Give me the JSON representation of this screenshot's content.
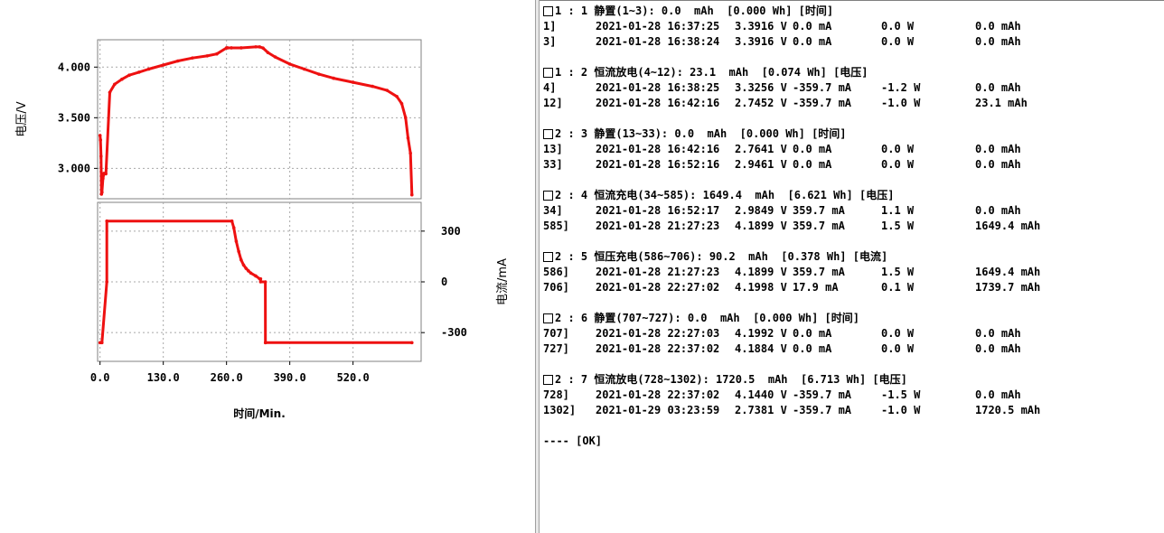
{
  "chart_data": [
    {
      "type": "line",
      "ylabel": "电压/V",
      "ylim": [
        2.7,
        4.27
      ],
      "yticks": [
        "4.000",
        "3.500",
        "3.000"
      ],
      "xlim": [
        -5,
        660
      ],
      "series": [
        {
          "color": "#ee1111",
          "x": [
            0,
            1,
            2,
            3,
            4,
            6,
            8,
            12,
            20,
            30,
            45,
            60,
            80,
            100,
            130,
            160,
            190,
            220,
            240,
            260,
            262,
            270,
            290,
            320,
            328,
            335,
            345,
            360,
            390,
            420,
            450,
            480,
            520,
            560,
            590,
            610,
            620,
            628,
            633,
            638,
            641
          ],
          "y": [
            3.3256,
            3.28,
            3.12,
            2.7452,
            2.7641,
            2.9,
            2.95,
            2.9461,
            3.75,
            3.83,
            3.88,
            3.92,
            3.95,
            3.98,
            4.02,
            4.06,
            4.09,
            4.11,
            4.13,
            4.1899,
            4.19,
            4.19,
            4.19,
            4.1998,
            4.1992,
            4.1884,
            4.144,
            4.1,
            4.03,
            3.98,
            3.93,
            3.89,
            3.85,
            3.81,
            3.77,
            3.71,
            3.64,
            3.5,
            3.3,
            3.15,
            2.7381
          ]
        }
      ]
    },
    {
      "type": "line",
      "ylabel": "电流/mA",
      "ylim": [
        -470,
        470
      ],
      "yticks": [
        "300",
        "0",
        "-300"
      ],
      "xticks": [
        "0.0",
        "130.0",
        "260.0",
        "390.0",
        "520.0"
      ],
      "xlim": [
        -5,
        660
      ],
      "xlabel": "时间/Min.",
      "series": [
        {
          "color": "#ee1111",
          "x": [
            0,
            3.9,
            13.9,
            14,
            271,
            275,
            280,
            285,
            290,
            295,
            300,
            305,
            310,
            320,
            328,
            330,
            330.1,
            339.8,
            340,
            340.1,
            641
          ],
          "y": [
            -359.7,
            -359.7,
            0,
            359.7,
            359.7,
            320,
            240,
            180,
            130,
            100,
            80,
            65,
            52,
            35,
            17.9,
            17.9,
            0,
            0,
            -359.7,
            -359.7,
            -359.7
          ]
        }
      ]
    }
  ],
  "log": {
    "groups": [
      {
        "header": "1 : 1 静置(1~3): 0.0  mAh  [0.000 Wh] [时间]",
        "rows": [
          {
            "id": "1]",
            "time": "2021-01-28 16:37:25",
            "voltage": "3.3916 V",
            "current": "0.0 mA",
            "power": "0.0 W",
            "capacity": "0.0 mAh"
          },
          {
            "id": "3]",
            "time": "2021-01-28 16:38:24",
            "voltage": "3.3916 V",
            "current": "0.0 mA",
            "power": "0.0 W",
            "capacity": "0.0 mAh"
          }
        ]
      },
      {
        "header": "1 : 2 恒流放电(4~12): 23.1  mAh  [0.074 Wh] [电压]",
        "rows": [
          {
            "id": "4]",
            "time": "2021-01-28 16:38:25",
            "voltage": "3.3256 V",
            "current": "-359.7 mA",
            "power": "-1.2 W",
            "capacity": "0.0 mAh"
          },
          {
            "id": "12]",
            "time": "2021-01-28 16:42:16",
            "voltage": "2.7452 V",
            "current": "-359.7 mA",
            "power": "-1.0 W",
            "capacity": "23.1 mAh"
          }
        ]
      },
      {
        "header": "2 : 3 静置(13~33): 0.0  mAh  [0.000 Wh] [时间]",
        "rows": [
          {
            "id": "13]",
            "time": "2021-01-28 16:42:16",
            "voltage": "2.7641 V",
            "current": "0.0 mA",
            "power": "0.0 W",
            "capacity": "0.0 mAh"
          },
          {
            "id": "33]",
            "time": "2021-01-28 16:52:16",
            "voltage": "2.9461 V",
            "current": "0.0 mA",
            "power": "0.0 W",
            "capacity": "0.0 mAh"
          }
        ]
      },
      {
        "header": "2 : 4 恒流充电(34~585): 1649.4  mAh  [6.621 Wh] [电压]",
        "rows": [
          {
            "id": "34]",
            "time": "2021-01-28 16:52:17",
            "voltage": "2.9849 V",
            "current": "359.7 mA",
            "power": "1.1 W",
            "capacity": "0.0 mAh"
          },
          {
            "id": "585]",
            "time": "2021-01-28 21:27:23",
            "voltage": "4.1899 V",
            "current": "359.7 mA",
            "power": "1.5 W",
            "capacity": "1649.4 mAh"
          }
        ]
      },
      {
        "header": "2 : 5 恒压充电(586~706): 90.2  mAh  [0.378 Wh] [电流]",
        "rows": [
          {
            "id": "586]",
            "time": "2021-01-28 21:27:23",
            "voltage": "4.1899 V",
            "current": "359.7 mA",
            "power": "1.5 W",
            "capacity": "1649.4 mAh"
          },
          {
            "id": "706]",
            "time": "2021-01-28 22:27:02",
            "voltage": "4.1998 V",
            "current": "17.9 mA",
            "power": "0.1 W",
            "capacity": "1739.7 mAh"
          }
        ]
      },
      {
        "header": "2 : 6 静置(707~727): 0.0  mAh  [0.000 Wh] [时间]",
        "rows": [
          {
            "id": "707]",
            "time": "2021-01-28 22:27:03",
            "voltage": "4.1992 V",
            "current": "0.0 mA",
            "power": "0.0 W",
            "capacity": "0.0 mAh"
          },
          {
            "id": "727]",
            "time": "2021-01-28 22:37:02",
            "voltage": "4.1884 V",
            "current": "0.0 mA",
            "power": "0.0 W",
            "capacity": "0.0 mAh"
          }
        ]
      },
      {
        "header": "2 : 7 恒流放电(728~1302): 1720.5  mAh  [6.713 Wh] [电压]",
        "rows": [
          {
            "id": "728]",
            "time": "2021-01-28 22:37:02",
            "voltage": "4.1440 V",
            "current": "-359.7 mA",
            "power": "-1.5 W",
            "capacity": "0.0 mAh"
          },
          {
            "id": "1302]",
            "time": "2021-01-29 03:23:59",
            "voltage": "2.7381 V",
            "current": "-359.7 mA",
            "power": "-1.0 W",
            "capacity": "1720.5 mAh"
          }
        ]
      }
    ],
    "footer": "---- [OK]"
  }
}
